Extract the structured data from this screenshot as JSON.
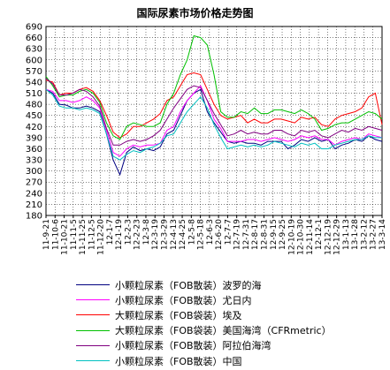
{
  "chart_data": {
    "type": "line",
    "title": "国际尿素市场价格走势图",
    "xlabel": "",
    "ylabel": "",
    "ylim": [
      180,
      690
    ],
    "yticks": [
      180,
      210,
      240,
      270,
      300,
      330,
      360,
      390,
      420,
      450,
      480,
      510,
      540,
      570,
      600,
      630,
      660,
      690
    ],
    "xticks": [
      "11-9-21",
      "11-10-6",
      "11-10-21",
      "11-11-5",
      "11-11-25",
      "11-12-5",
      "11-12-20",
      "12-1-7",
      "12-1-19",
      "12-2-3",
      "12-2-23",
      "12-3-8",
      "12-3-19",
      "12-3-29",
      "12-4-13",
      "12-4-25",
      "12-5-8",
      "12-5-18",
      "12-6-3",
      "12-6-20",
      "12-7-7",
      "12-7-19",
      "12-7-31",
      "12-8-17",
      "12-8-31",
      "12-9-15",
      "12-9-25",
      "12-10-19",
      "12-10-30",
      "12-11-14",
      "12-12-1",
      "12-12-19",
      "12-12-29",
      "13-1-13",
      "13-1-28",
      "13-2-12",
      "13-2-27",
      "13-3-14"
    ],
    "grid": true,
    "legend_position": "bottom",
    "series": [
      {
        "name": "小颗粒尿素（FOB散装）波罗的海",
        "color": "#000080",
        "values": [
          520,
          510,
          480,
          478,
          470,
          470,
          475,
          470,
          460,
          400,
          330,
          290,
          350,
          365,
          355,
          360,
          355,
          365,
          400,
          410,
          450,
          490,
          510,
          520,
          460,
          430,
          405,
          380,
          375,
          380,
          375,
          375,
          370,
          380,
          380,
          380,
          360,
          370,
          385,
          380,
          390,
          380,
          385,
          360,
          370,
          375,
          385,
          380,
          395,
          385,
          380
        ]
      },
      {
        "name": "小颗粒尿素（FOB散装）尤日内",
        "color": "#ff00ff",
        "values": [
          520,
          515,
          490,
          490,
          485,
          490,
          500,
          490,
          470,
          410,
          350,
          340,
          360,
          370,
          365,
          370,
          370,
          375,
          410,
          420,
          460,
          490,
          510,
          530,
          490,
          440,
          415,
          380,
          380,
          380,
          385,
          385,
          380,
          385,
          390,
          385,
          380,
          385,
          395,
          390,
          395,
          385,
          385,
          370,
          380,
          385,
          390,
          385,
          400,
          395,
          390
        ]
      },
      {
        "name": "大颗粒尿素（FOB袋装）埃及",
        "color": "#ff0000",
        "values": [
          545,
          540,
          505,
          510,
          510,
          520,
          525,
          515,
          490,
          450,
          405,
          390,
          400,
          420,
          420,
          430,
          440,
          455,
          490,
          500,
          530,
          560,
          565,
          560,
          520,
          480,
          450,
          440,
          445,
          450,
          430,
          440,
          430,
          430,
          440,
          440,
          435,
          430,
          445,
          440,
          445,
          425,
          420,
          440,
          450,
          455,
          460,
          470,
          500,
          510,
          425
        ]
      },
      {
        "name": "大颗粒尿素（FOB袋装）美国海湾（CFRmetric）",
        "color": "#00c000",
        "values": [
          555,
          530,
          500,
          505,
          505,
          515,
          520,
          510,
          485,
          430,
          395,
          385,
          420,
          430,
          425,
          420,
          420,
          430,
          480,
          510,
          560,
          600,
          665,
          660,
          640,
          560,
          460,
          445,
          445,
          460,
          455,
          470,
          455,
          455,
          465,
          465,
          460,
          455,
          465,
          455,
          440,
          410,
          415,
          425,
          430,
          430,
          440,
          450,
          460,
          455,
          440
        ]
      },
      {
        "name": "小颗粒尿素（FOB散装）阿拉伯海湾",
        "color": "#800080",
        "values": [
          550,
          535,
          505,
          505,
          510,
          520,
          515,
          500,
          475,
          415,
          370,
          370,
          380,
          385,
          380,
          385,
          395,
          410,
          440,
          470,
          495,
          520,
          530,
          525,
          490,
          455,
          425,
          395,
          400,
          410,
          400,
          405,
          400,
          400,
          410,
          410,
          400,
          395,
          410,
          405,
          410,
          395,
          390,
          400,
          410,
          405,
          415,
          410,
          420,
          415,
          410
        ]
      },
      {
        "name": "小颗粒尿素（FOB散装）中国",
        "color": "#00c0c0",
        "values": [
          520,
          505,
          475,
          470,
          470,
          465,
          470,
          465,
          455,
          400,
          340,
          330,
          345,
          355,
          350,
          360,
          365,
          375,
          395,
          400,
          430,
          460,
          480,
          500,
          470,
          425,
          390,
          360,
          365,
          370,
          365,
          370,
          365,
          370,
          380,
          375,
          370,
          365,
          375,
          370,
          375,
          360,
          360,
          370,
          375,
          380,
          385,
          385,
          395,
          390,
          390
        ]
      }
    ]
  }
}
